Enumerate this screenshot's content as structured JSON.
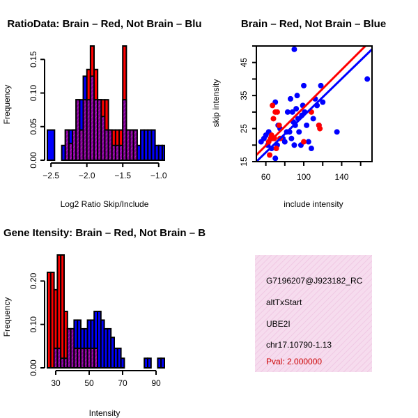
{
  "colors": {
    "brain": "#ff0000",
    "not_brain": "#0000ff",
    "overlap": "#8b00a0",
    "info_bg": "#f6dcee",
    "pval": "#cc0000"
  },
  "info_panel": {
    "probeset": "G7196207@J923182_RC",
    "event_type": "altTxStart",
    "gene": "UBE2I",
    "location": "chr17.10790-1.13",
    "pval_label": "Pval: 2.000000"
  },
  "chart_data": [
    {
      "type": "bar",
      "subtype": "overlaid-histogram",
      "title": "RatioData: Brain – Red, Not Brain – Blu",
      "xlabel": "Log2 Ratio Skip/Include",
      "ylabel": "Frequency",
      "xlim": [
        -2.55,
        -0.92
      ],
      "ylim": [
        0,
        0.17
      ],
      "xticks": [
        -2.5,
        -2.0,
        -1.5,
        -1.0
      ],
      "xtick_labels": [
        "−2.5",
        "−2.0",
        "−1.5",
        "−1.0"
      ],
      "yticks": [
        0,
        0.05,
        0.1,
        0.15
      ],
      "ytick_labels": [
        "0.00",
        "0.05",
        "0.10",
        "0.15"
      ],
      "bin_edges": [
        -2.55,
        -2.45,
        -2.35,
        -2.3,
        -2.25,
        -2.2,
        -2.15,
        -2.1,
        -2.05,
        -2.0,
        -1.95,
        -1.9,
        -1.85,
        -1.8,
        -1.75,
        -1.7,
        -1.65,
        -1.6,
        -1.55,
        -1.5,
        -1.45,
        -1.4,
        -1.35,
        -1.3,
        -1.25,
        -1.2,
        -1.15,
        -1.1,
        -1.05,
        -1.0,
        -0.95,
        -0.92
      ],
      "series": [
        {
          "name": "Brain",
          "values": [
            0,
            0,
            0,
            0.045,
            0.025,
            0.045,
            0.09,
            0.045,
            0.09,
            0.135,
            0.17,
            0.135,
            0.09,
            0.09,
            0.09,
            0.045,
            0.045,
            0.045,
            0.045,
            0.17,
            0.045,
            0.045,
            0.045,
            0.0,
            0.0,
            0.0,
            0.0,
            0.0,
            0.0,
            0.0,
            0.0
          ]
        },
        {
          "name": "Not Brain",
          "values": [
            0.045,
            0.0,
            0.022,
            0.045,
            0.045,
            0.045,
            0.09,
            0.09,
            0.125,
            0.09,
            0.125,
            0.09,
            0.09,
            0.065,
            0.045,
            0.045,
            0.022,
            0.022,
            0.022,
            0.09,
            0.045,
            0.045,
            0.045,
            0.022,
            0.045,
            0.045,
            0.045,
            0.045,
            0.022,
            0.022,
            0.022
          ]
        }
      ]
    },
    {
      "type": "scatter",
      "title": "Brain – Red, Not Brain – Blue",
      "xlabel": "include intensity",
      "ylabel": "skip intensity",
      "xlim": [
        50,
        172
      ],
      "ylim": [
        15,
        50
      ],
      "xticks": [
        60,
        100,
        140
      ],
      "xtick_labels": [
        "60",
        "100",
        "140"
      ],
      "yticks": [
        15,
        25,
        35,
        45
      ],
      "ytick_labels": [
        "15",
        "25",
        "35",
        "45"
      ],
      "series": [
        {
          "name": "Brain",
          "points": [
            [
              60,
              14
            ],
            [
              63,
              21
            ],
            [
              64,
              17
            ],
            [
              65,
              22
            ],
            [
              66,
              23
            ],
            [
              67,
              22
            ],
            [
              67,
              32
            ],
            [
              68,
              28
            ],
            [
              69,
              22
            ],
            [
              70,
              30
            ],
            [
              71,
              19
            ],
            [
              72,
              30
            ],
            [
              74,
              26
            ],
            [
              75,
              22
            ],
            [
              100,
              21
            ],
            [
              108,
              30
            ],
            [
              116,
              26
            ],
            [
              117,
              25
            ]
          ]
        },
        {
          "name": "Not Brain",
          "points": [
            [
              55,
              21
            ],
            [
              58,
              22
            ],
            [
              60,
              23
            ],
            [
              62,
              20
            ],
            [
              63,
              24
            ],
            [
              66,
              19
            ],
            [
              70,
              16
            ],
            [
              70,
              33
            ],
            [
              72,
              20
            ],
            [
              73,
              26
            ],
            [
              75,
              25
            ],
            [
              78,
              22
            ],
            [
              80,
              21
            ],
            [
              82,
              24
            ],
            [
              83,
              30
            ],
            [
              85,
              24
            ],
            [
              86,
              34
            ],
            [
              87,
              22
            ],
            [
              88,
              30
            ],
            [
              89,
              27
            ],
            [
              90,
              20
            ],
            [
              90,
              49
            ],
            [
              91,
              26
            ],
            [
              92,
              31
            ],
            [
              93,
              35
            ],
            [
              94,
              28
            ],
            [
              95,
              24
            ],
            [
              97,
              20
            ],
            [
              98,
              29
            ],
            [
              99,
              32
            ],
            [
              100,
              38
            ],
            [
              101,
              30
            ],
            [
              103,
              26
            ],
            [
              105,
              21
            ],
            [
              108,
              19
            ],
            [
              110,
              28
            ],
            [
              112,
              34
            ],
            [
              114,
              32
            ],
            [
              116,
              26
            ],
            [
              118,
              38
            ],
            [
              120,
              33
            ],
            [
              135,
              24
            ],
            [
              167,
              40
            ]
          ]
        }
      ],
      "fit_lines": [
        {
          "name": "Brain fit",
          "from": [
            50,
            17
          ],
          "to": [
            172,
            52
          ]
        },
        {
          "name": "Not Brain fit",
          "from": [
            50,
            15
          ],
          "to": [
            172,
            49
          ]
        }
      ]
    },
    {
      "type": "bar",
      "subtype": "overlaid-histogram",
      "title": "Gene Itensity: Brain – Red, Not Brain – B",
      "xlabel": "Intensity",
      "ylabel": "Frequency",
      "xlim": [
        25,
        95
      ],
      "ylim": [
        0,
        0.26
      ],
      "xticks": [
        30,
        50,
        70,
        90
      ],
      "xtick_labels": [
        "30",
        "50",
        "70",
        "90"
      ],
      "yticks": [
        0,
        0.1,
        0.2
      ],
      "ytick_labels": [
        "0.00",
        "0.10",
        "0.20"
      ],
      "bin_edges": [
        25,
        27,
        29,
        31,
        33,
        35,
        37,
        39,
        41,
        43,
        45,
        47,
        49,
        51,
        53,
        55,
        57,
        59,
        61,
        63,
        65,
        67,
        69,
        71,
        73,
        75,
        77,
        79,
        81,
        83,
        85,
        87,
        89,
        91,
        93,
        95
      ],
      "series": [
        {
          "name": "Brain",
          "values": [
            0.22,
            0.22,
            0.18,
            0.26,
            0.26,
            0.13,
            0.09,
            0.09,
            0.045,
            0.045,
            0.045,
            0.045,
            0.045,
            0.045,
            0.045,
            0,
            0,
            0,
            0,
            0,
            0,
            0,
            0,
            0,
            0,
            0,
            0,
            0,
            0,
            0,
            0,
            0,
            0,
            0,
            0
          ]
        },
        {
          "name": "Not Brain",
          "values": [
            0,
            0,
            0.045,
            0.045,
            0.022,
            0.022,
            0.09,
            0.09,
            0.11,
            0.11,
            0.09,
            0.09,
            0.11,
            0.11,
            0.13,
            0.13,
            0.11,
            0.09,
            0.09,
            0.07,
            0.045,
            0.045,
            0.022,
            0,
            0,
            0,
            0,
            0,
            0,
            0.022,
            0.022,
            0,
            0,
            0.022,
            0.022
          ]
        }
      ]
    }
  ]
}
